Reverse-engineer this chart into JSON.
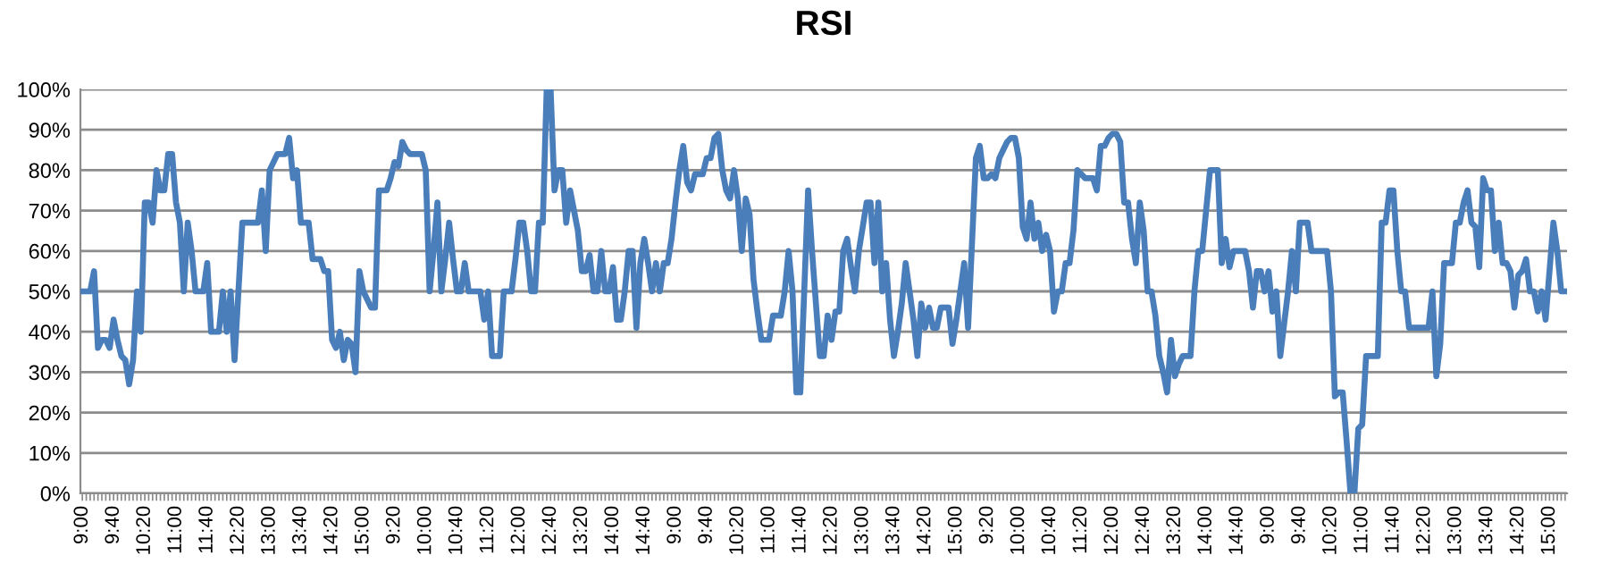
{
  "chart_data": {
    "type": "line",
    "title": "RSI",
    "categories": [
      "9:00",
      null,
      null,
      null,
      null,
      null,
      null,
      null,
      "9:40",
      null,
      null,
      null,
      null,
      null,
      null,
      null,
      "10:20",
      null,
      null,
      null,
      null,
      null,
      null,
      null,
      "11:00",
      null,
      null,
      null,
      null,
      null,
      null,
      null,
      "11:40",
      null,
      null,
      null,
      null,
      null,
      null,
      null,
      "12:20",
      null,
      null,
      null,
      null,
      null,
      null,
      null,
      "13:00",
      null,
      null,
      null,
      null,
      null,
      null,
      null,
      "13:40",
      null,
      null,
      null,
      null,
      null,
      null,
      null,
      "14:20",
      null,
      null,
      null,
      null,
      null,
      null,
      null,
      "15:00",
      null,
      null,
      null,
      null,
      null,
      null,
      null,
      "9:20",
      null,
      null,
      null,
      null,
      null,
      null,
      null,
      "10:00",
      null,
      null,
      null,
      null,
      null,
      null,
      null,
      "10:40",
      null,
      null,
      null,
      null,
      null,
      null,
      null,
      "11:20",
      null,
      null,
      null,
      null,
      null,
      null,
      null,
      "12:00",
      null,
      null,
      null,
      null,
      null,
      null,
      null,
      "12:40",
      null,
      null,
      null,
      null,
      null,
      null,
      null,
      "13:20",
      null,
      null,
      null,
      null,
      null,
      null,
      null,
      "14:00",
      null,
      null,
      null,
      null,
      null,
      null,
      null,
      "14:40",
      null,
      null,
      null,
      null,
      null,
      null,
      null,
      "9:00",
      null,
      null,
      null,
      null,
      null,
      null,
      null,
      "9:40",
      null,
      null,
      null,
      null,
      null,
      null,
      null,
      "10:20",
      null,
      null,
      null,
      null,
      null,
      null,
      null,
      "11:00",
      null,
      null,
      null,
      null,
      null,
      null,
      null,
      "11:40",
      null,
      null,
      null,
      null,
      null,
      null,
      null,
      "12:20",
      null,
      null,
      null,
      null,
      null,
      null,
      null,
      "13:00",
      null,
      null,
      null,
      null,
      null,
      null,
      null,
      "13:40",
      null,
      null,
      null,
      null,
      null,
      null,
      null,
      "14:20",
      null,
      null,
      null,
      null,
      null,
      null,
      null,
      "15:00",
      null,
      null,
      null,
      null,
      null,
      null,
      null,
      "9:20",
      null,
      null,
      null,
      null,
      null,
      null,
      null,
      "10:00",
      null,
      null,
      null,
      null,
      null,
      null,
      null,
      "10:40",
      null,
      null,
      null,
      null,
      null,
      null,
      null,
      "11:20",
      null,
      null,
      null,
      null,
      null,
      null,
      null,
      "12:00",
      null,
      null,
      null,
      null,
      null,
      null,
      null,
      "12:40",
      null,
      null,
      null,
      null,
      null,
      null,
      null,
      "13:20",
      null,
      null,
      null,
      null,
      null,
      null,
      null,
      "14:00",
      null,
      null,
      null,
      null,
      null,
      null,
      null,
      "14:40",
      null,
      null,
      null,
      null,
      null,
      null,
      null,
      "9:00",
      null,
      null,
      null,
      null,
      null,
      null,
      null,
      "9:40",
      null,
      null,
      null,
      null,
      null,
      null,
      null,
      "10:20",
      null,
      null,
      null,
      null,
      null,
      null,
      null,
      "11:00",
      null,
      null,
      null,
      null,
      null,
      null,
      null,
      "11:40",
      null,
      null,
      null,
      null,
      null,
      null,
      null,
      "12:20",
      null,
      null,
      null,
      null,
      null,
      null,
      null,
      "13:00",
      null,
      null,
      null,
      null,
      null,
      null,
      null,
      "13:40",
      null,
      null,
      null,
      null,
      null,
      null,
      null,
      "14:20",
      null,
      null,
      null,
      null,
      null,
      null,
      null,
      "15:00",
      null,
      null,
      null,
      null
    ],
    "series": [
      {
        "color": "#4a7ebb",
        "values": [
          50,
          50,
          50,
          55,
          36,
          38,
          38,
          36,
          43,
          38,
          34,
          33,
          27,
          33,
          50,
          40,
          72,
          72,
          67,
          80,
          75,
          75,
          84,
          84,
          72,
          67,
          50,
          67,
          60,
          50,
          50,
          50,
          57,
          40,
          40,
          40,
          50,
          40,
          50,
          33,
          50,
          67,
          67,
          67,
          67,
          67,
          75,
          60,
          80,
          82,
          84,
          84,
          84,
          88,
          78,
          80,
          67,
          67,
          67,
          58,
          58,
          58,
          55,
          55,
          38,
          36,
          40,
          33,
          38,
          37,
          30,
          55,
          50,
          48,
          46,
          46,
          75,
          75,
          75,
          78,
          82,
          81,
          87,
          85,
          84,
          84,
          84,
          84,
          80,
          50,
          60,
          72,
          50,
          58,
          67,
          58,
          50,
          50,
          57,
          50,
          50,
          50,
          50,
          43,
          50,
          34,
          34,
          34,
          50,
          50,
          50,
          58,
          67,
          67,
          60,
          50,
          50,
          67,
          67,
          100,
          100,
          75,
          80,
          80,
          67,
          75,
          70,
          65,
          55,
          55,
          59,
          50,
          50,
          60,
          50,
          50,
          56,
          43,
          43,
          50,
          60,
          60,
          41,
          57,
          63,
          57,
          50,
          57,
          50,
          57,
          57,
          63,
          72,
          80,
          86,
          77,
          75,
          79,
          79,
          79,
          83,
          83,
          88,
          89,
          80,
          75,
          73,
          80,
          73,
          60,
          73,
          69,
          53,
          45,
          38,
          38,
          38,
          44,
          44,
          44,
          50,
          60,
          50,
          25,
          25,
          50,
          75,
          60,
          47,
          34,
          34,
          44,
          38,
          45,
          45,
          60,
          63,
          56,
          50,
          60,
          66,
          72,
          72,
          57,
          72,
          50,
          57,
          43,
          34,
          40,
          47,
          57,
          50,
          43,
          34,
          47,
          41,
          46,
          41,
          41,
          46,
          46,
          46,
          37,
          43,
          50,
          57,
          41,
          62,
          83,
          86,
          78,
          78,
          79,
          78,
          83,
          85,
          87,
          88,
          88,
          83,
          66,
          63,
          72,
          63,
          67,
          60,
          64,
          60,
          45,
          50,
          50,
          57,
          57,
          65,
          80,
          79,
          78,
          78,
          78,
          75,
          86,
          86,
          88,
          89,
          89,
          87,
          72,
          72,
          63,
          57,
          72,
          65,
          50,
          50,
          44,
          34,
          30,
          25,
          38,
          29,
          32,
          34,
          34,
          34,
          50,
          60,
          60,
          70,
          80,
          80,
          80,
          57,
          63,
          56,
          60,
          60,
          60,
          60,
          55,
          46,
          55,
          55,
          50,
          55,
          45,
          50,
          34,
          42,
          50,
          60,
          50,
          67,
          67,
          67,
          60,
          60,
          60,
          60,
          60,
          50,
          24,
          25,
          25,
          13,
          0,
          0,
          16,
          17,
          34,
          34,
          34,
          34,
          67,
          67,
          75,
          75,
          60,
          50,
          50,
          41,
          41,
          41,
          41,
          41,
          41,
          50,
          29,
          37,
          57,
          57,
          57,
          67,
          67,
          72,
          75,
          67,
          66,
          56,
          78,
          75,
          75,
          60,
          67,
          57,
          57,
          55,
          46,
          54,
          55,
          58,
          50,
          50,
          45,
          50,
          43,
          55,
          67,
          60,
          50,
          50
        ]
      }
    ],
    "ylim": [
      0,
      100
    ],
    "yticks": [
      {
        "value": 0,
        "label": "0%"
      },
      {
        "value": 10,
        "label": "10%"
      },
      {
        "value": 20,
        "label": "20%"
      },
      {
        "value": 30,
        "label": "30%"
      },
      {
        "value": 40,
        "label": "40%"
      },
      {
        "value": 50,
        "label": "50%"
      },
      {
        "value": 60,
        "label": "60%"
      },
      {
        "value": 70,
        "label": "70%"
      },
      {
        "value": 80,
        "label": "80%"
      },
      {
        "value": 90,
        "label": "90%"
      },
      {
        "value": 100,
        "label": "100%"
      }
    ],
    "grid": "y",
    "legend": false,
    "marker": "none",
    "line_style": "solid"
  }
}
